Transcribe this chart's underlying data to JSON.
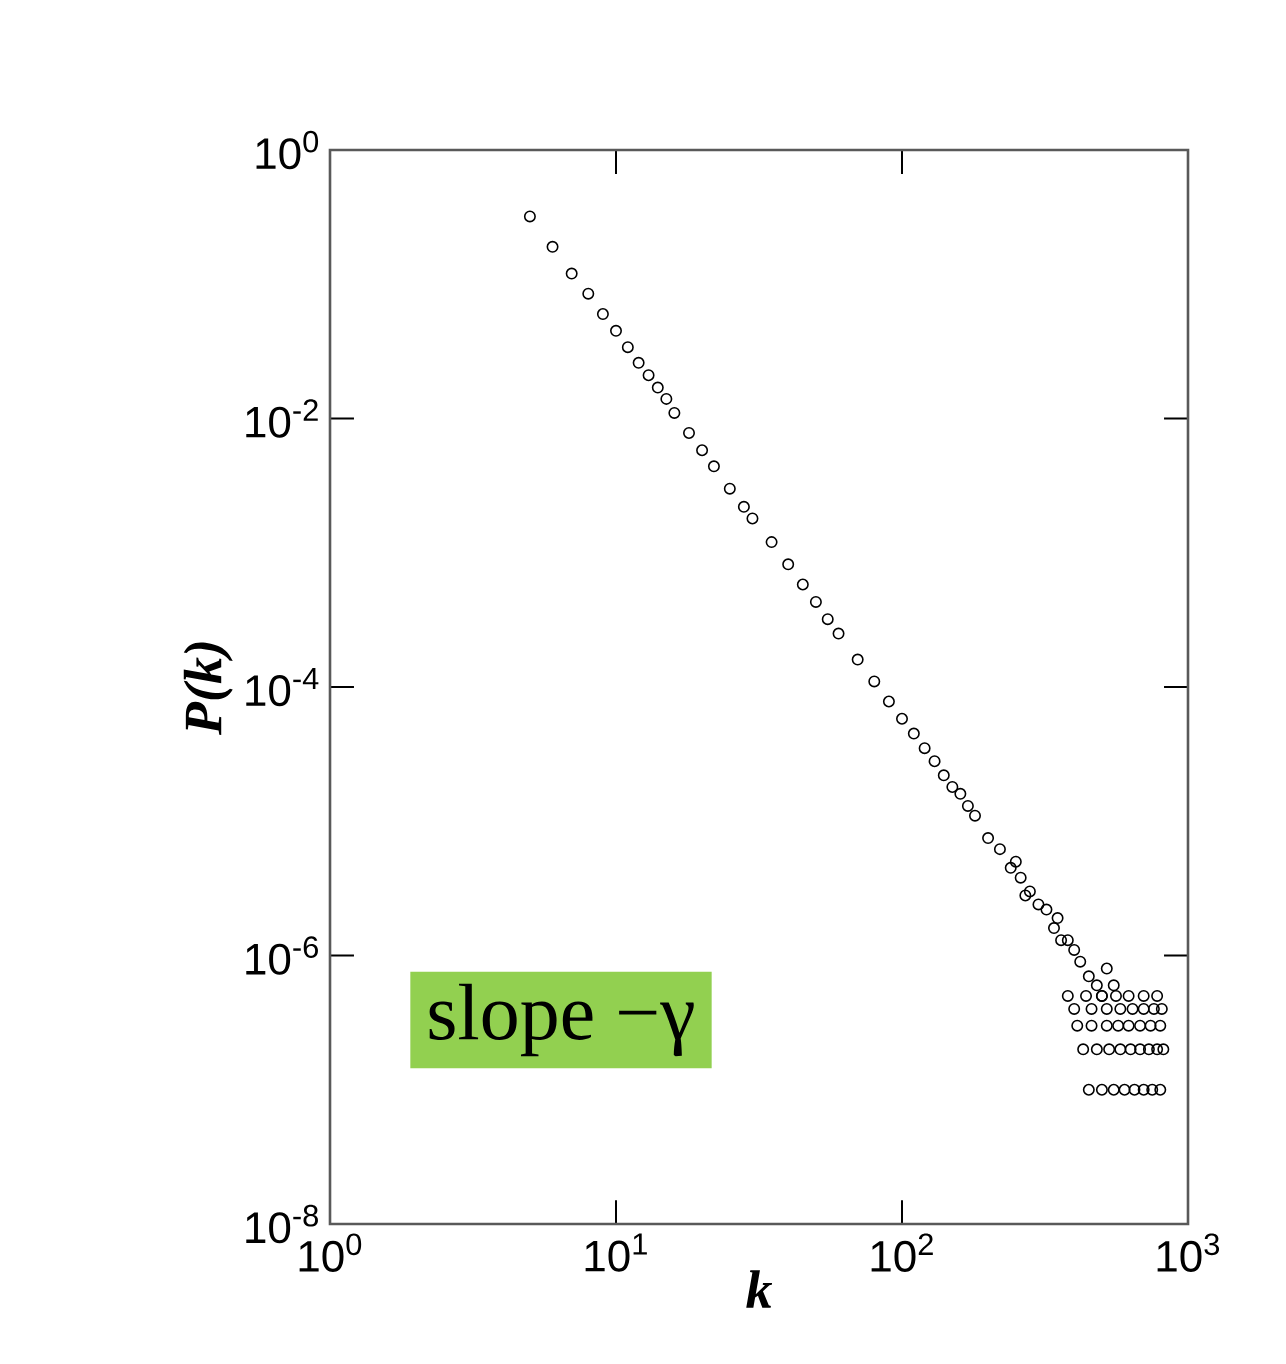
{
  "chart_data": {
    "type": "scatter",
    "xlabel": "k",
    "ylabel": "P(k)",
    "annotations": [
      "slope −γ"
    ],
    "log": "xy",
    "grid": false,
    "marker": "circle",
    "xlim": [
      1,
      1000
    ],
    "ylim": [
      1e-08,
      1
    ],
    "xticks": [
      {
        "value": 1,
        "label": "10$^{0}$"
      },
      {
        "value": 10,
        "label": "10$^{1}$"
      },
      {
        "value": 100,
        "label": "10$^{2}$"
      },
      {
        "value": 1000,
        "label": "10$^{3}$"
      }
    ],
    "yticks": [
      {
        "value": 1e-08,
        "label": "10$^{-8}$"
      },
      {
        "value": 1e-06,
        "label": "10$^{-6}$"
      },
      {
        "value": 0.0001,
        "label": "10$^{-4}$"
      },
      {
        "value": 0.01,
        "label": "10$^{-2}$"
      },
      {
        "value": 1,
        "label": "10$^{0}$"
      }
    ],
    "series": [
      {
        "color": "#000000",
        "x": [
          5,
          6,
          7,
          8,
          9,
          10,
          11,
          12,
          13,
          14,
          15,
          16,
          18,
          20,
          22,
          25,
          28,
          30,
          35,
          40,
          45,
          50,
          55,
          60,
          70,
          80,
          90,
          100,
          110,
          120,
          130,
          140,
          150,
          160,
          170,
          180,
          200,
          220,
          240,
          250,
          260,
          270,
          280,
          300,
          320,
          340,
          350,
          360,
          380,
          400,
          420,
          450,
          480,
          500,
          520,
          550,
          450,
          500,
          550,
          600,
          650,
          700,
          750,
          800,
          430,
          480,
          530,
          580,
          630,
          680,
          730,
          780,
          820,
          410,
          460,
          520,
          570,
          620,
          680,
          740,
          800,
          400,
          460,
          520,
          580,
          640,
          700,
          760,
          810,
          380,
          440,
          500,
          560,
          620,
          700,
          780
        ],
        "values": [
          0.32,
          0.19,
          0.12,
          0.085,
          0.06,
          0.045,
          0.034,
          0.026,
          0.021,
          0.017,
          0.014,
          0.011,
          0.0078,
          0.0058,
          0.0044,
          0.003,
          0.0022,
          0.0018,
          0.0012,
          0.00082,
          0.00058,
          0.00043,
          0.00032,
          0.00025,
          0.00016,
          0.00011,
          7.8e-05,
          5.8e-05,
          4.5e-05,
          3.5e-05,
          2.8e-05,
          2.2e-05,
          1.8e-05,
          1.6e-05,
          1.3e-05,
          1.1e-05,
          7.5e-06,
          6.2e-06,
          4.5e-06,
          5e-06,
          3.8e-06,
          2.8e-06,
          3e-06,
          2.4e-06,
          2.2e-06,
          1.6e-06,
          1.9e-06,
          1.3e-06,
          1.3e-06,
          1.1e-06,
          9e-07,
          7e-07,
          6e-07,
          5e-07,
          8e-07,
          6e-07,
          1e-07,
          1e-07,
          1e-07,
          1e-07,
          1e-07,
          1e-07,
          1e-07,
          1e-07,
          2e-07,
          2e-07,
          2e-07,
          2e-07,
          2e-07,
          2e-07,
          2e-07,
          2e-07,
          2e-07,
          3e-07,
          3e-07,
          3e-07,
          3e-07,
          3e-07,
          3e-07,
          3e-07,
          3e-07,
          4e-07,
          4e-07,
          4e-07,
          4e-07,
          4e-07,
          4e-07,
          4e-07,
          4e-07,
          5e-07,
          5e-07,
          5e-07,
          5e-07,
          5e-07,
          5e-07,
          5e-07
        ]
      }
    ]
  }
}
